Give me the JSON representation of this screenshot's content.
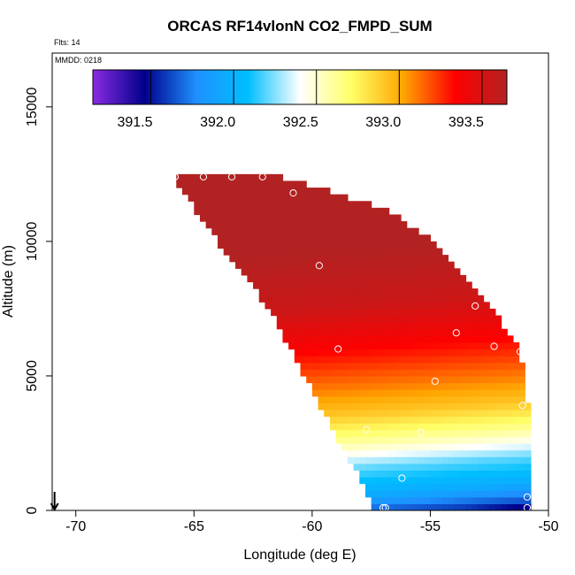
{
  "chart_data": {
    "type": "heatmap",
    "title": "ORCAS RF14vlonN CO2_FMPD_SUM",
    "notes": {
      "flights": "Flts: 14",
      "mmdd": "MMDD: 0218"
    },
    "xlabel": "Longitude (deg E)",
    "ylabel": "Altitude (m)",
    "xlim": [
      -71,
      -50
    ],
    "ylim": [
      0,
      17000
    ],
    "x_ticks": [
      -70,
      -65,
      -60,
      -55,
      -50
    ],
    "x_tick_labels": [
      "-70",
      "-65",
      "-60",
      "-55",
      "-50"
    ],
    "y_ticks": [
      0,
      5000,
      10000,
      15000
    ],
    "y_tick_labels": [
      "0",
      "5000",
      "10000",
      "15000"
    ],
    "colorbar": {
      "min": 391.15,
      "max": 393.65,
      "ticks": [
        391.5,
        392.0,
        392.5,
        393.0,
        393.5
      ],
      "tick_labels": [
        "391.5",
        "392.0",
        "392.5",
        "393.0",
        "393.5"
      ],
      "colors": [
        "#8a2be2",
        "#00008b",
        "#1e90ff",
        "#00bfff",
        "#ffffff",
        "#ffff66",
        "#ffa500",
        "#ff0000",
        "#b22222"
      ]
    },
    "field": {
      "description": "curtain of CO2 values; filled region bounded left and right by longitude limits per altitude",
      "altitude_range": [
        0,
        12500
      ],
      "left_edge": [
        [
          0,
          -57.2
        ],
        [
          1200,
          -57.8
        ],
        [
          2500,
          -58.7
        ],
        [
          5000,
          -60.2
        ],
        [
          7500,
          -61.7
        ],
        [
          10000,
          -63.9
        ],
        [
          12500,
          -65.8
        ]
      ],
      "right_edge": [
        [
          0,
          -50.8
        ],
        [
          3900,
          -51.0
        ],
        [
          5900,
          -51.3
        ],
        [
          7500,
          -52.5
        ],
        [
          10000,
          -55.0
        ],
        [
          11200,
          -57.0
        ],
        [
          12500,
          -61.8
        ]
      ],
      "profile_levels": [
        [
          0,
          391.3
        ],
        [
          300,
          391.6
        ],
        [
          1000,
          391.95
        ],
        [
          2000,
          392.2
        ],
        [
          3000,
          392.6
        ],
        [
          4000,
          392.9
        ],
        [
          5000,
          393.1
        ],
        [
          6500,
          393.35
        ],
        [
          8000,
          393.55
        ],
        [
          10000,
          393.65
        ],
        [
          12500,
          393.65
        ]
      ]
    },
    "samples": [
      [
        -65.8,
        12400
      ],
      [
        -64.6,
        12400
      ],
      [
        -63.4,
        12400
      ],
      [
        -62.1,
        12400
      ],
      [
        -60.8,
        11800
      ],
      [
        -59.7,
        9100
      ],
      [
        -53.1,
        7600
      ],
      [
        -53.9,
        6600
      ],
      [
        -52.3,
        6100
      ],
      [
        -51.2,
        5900
      ],
      [
        -58.9,
        6000
      ],
      [
        -54.8,
        4800
      ],
      [
        -51.1,
        3900
      ],
      [
        -57.7,
        3000
      ],
      [
        -55.4,
        2900
      ],
      [
        -56.2,
        1200
      ],
      [
        -50.9,
        500
      ],
      [
        -57.0,
        100
      ],
      [
        -56.9,
        100
      ],
      [
        -50.9,
        100
      ]
    ],
    "marker": {
      "longitude": -70.9,
      "symbol": "arrow",
      "direction": "down"
    }
  }
}
